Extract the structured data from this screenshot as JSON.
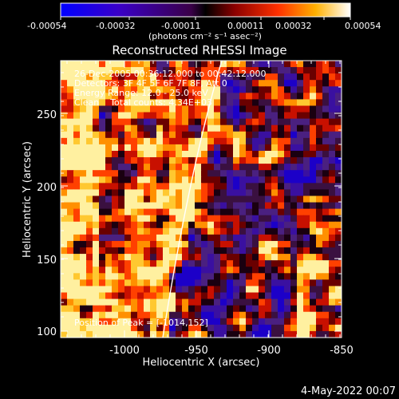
{
  "colorbar": {
    "tick_labels": [
      "-0.00054",
      "-0.00032",
      "-0.00011",
      "0.00011",
      "0.00032",
      "0.00054"
    ],
    "unit_label": "(photons cm⁻² s⁻¹ asec⁻²)",
    "range": [
      -0.00054,
      0.00054
    ]
  },
  "title": "Reconstructed RHESSI Image",
  "info": {
    "time": "26-Dec-2005 00:36:12.000 to 00:42:12.000",
    "detectors": "Detectors: 3F 4F 5F 6F 7F 8F, Att 0",
    "energy": "Energy Range: 12.0 - 25.0 keV",
    "clean": "Clean    Total counts: 4.34E+03",
    "peak": "Position of Peak = [-1014,152]"
  },
  "axes": {
    "xlabel": "Heliocentric X (arcsec)",
    "ylabel": "Heliocentric Y (arcsec)",
    "x_ticks": [
      "-1000",
      "-950",
      "-900",
      "-850"
    ],
    "y_ticks": [
      "100",
      "150",
      "200",
      "250"
    ],
    "x_range": [
      -1045,
      -850
    ],
    "y_range": [
      95,
      290
    ]
  },
  "footer": {
    "date": "4-May-2022 00:07"
  },
  "colors": {
    "background": "#000000",
    "text": "#ffffff",
    "limb_line": "#ffffff"
  }
}
